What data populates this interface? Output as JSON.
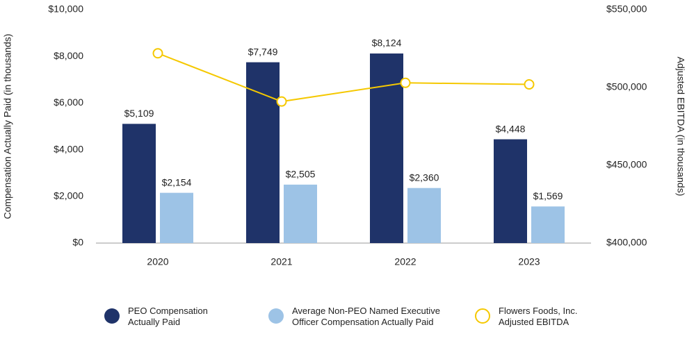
{
  "chart_data": {
    "type": "bar",
    "categories": [
      "2020",
      "2021",
      "2022",
      "2023"
    ],
    "y_label": "Compensation Actually Paid (in thousands)",
    "y2_label": "Adjusted EBITDA (in thousands)",
    "ylim": [
      0,
      10000
    ],
    "yticks": [
      {
        "value": 0,
        "label": "$0"
      },
      {
        "value": 2000,
        "label": "$2,000"
      },
      {
        "value": 4000,
        "label": "$4,000"
      },
      {
        "value": 6000,
        "label": "$6,000"
      },
      {
        "value": 8000,
        "label": "$8,000"
      },
      {
        "value": 10000,
        "label": "$10,000"
      }
    ],
    "y2lim": [
      400000,
      550000
    ],
    "y2ticks": [
      {
        "value": 400000,
        "label": "$400,000"
      },
      {
        "value": 450000,
        "label": "$450,000"
      },
      {
        "value": 500000,
        "label": "$500,000"
      },
      {
        "value": 550000,
        "label": "$550,000"
      }
    ],
    "series": [
      {
        "name": "PEO Compensation Actually Paid",
        "color": "#1f3369",
        "values": [
          5109,
          7749,
          8124,
          4448
        ],
        "value_labels": [
          "$5,109",
          "$7,749",
          "$8,124",
          "$4,448"
        ]
      },
      {
        "name": "Average Non-PEO Named Executive Officer Compensation Actually Paid",
        "color": "#9dc3e6",
        "values": [
          2154,
          2505,
          2360,
          1569
        ],
        "value_labels": [
          "$2,154",
          "$2,505",
          "$2,360",
          "$1,569"
        ]
      },
      {
        "name": "Flowers Foods, Inc. Adjusted EBITDA",
        "color": "#f5c800",
        "type": "line",
        "axis": "y2",
        "values": [
          522000,
          491000,
          503000,
          502000
        ]
      }
    ]
  }
}
